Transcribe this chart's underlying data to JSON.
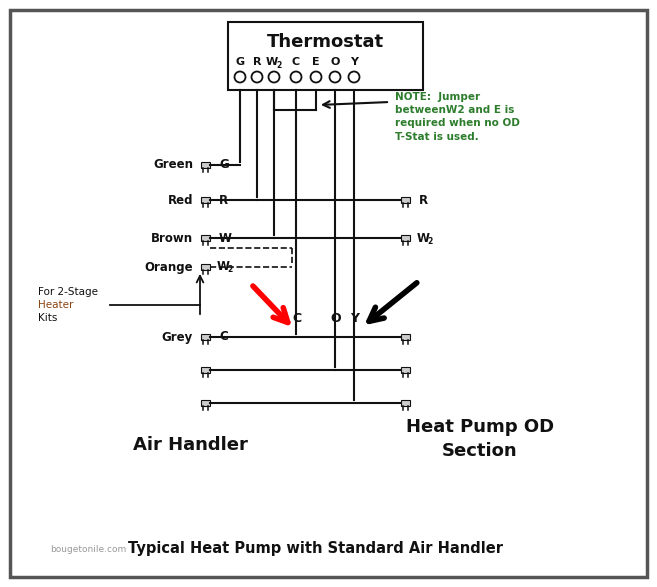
{
  "title": "Typical Heat Pump with Standard Air Handler",
  "subtitle": "bougetonile.com",
  "thermostat_label": "Thermostat",
  "note_text": "NOTE:  Jumper\nbetweenW2 and E is\nrequired when no OD\nT-Stat is used.",
  "note_color": "#2d7d2d",
  "air_handler_label": "Air Handler",
  "heat_pump_label": "Heat Pump OD\nSection",
  "for_2stage_text": "For 2-Stage\nHeater\nKits",
  "background_color": "#ffffff",
  "border_color": "#444444",
  "line_color": "#111111"
}
